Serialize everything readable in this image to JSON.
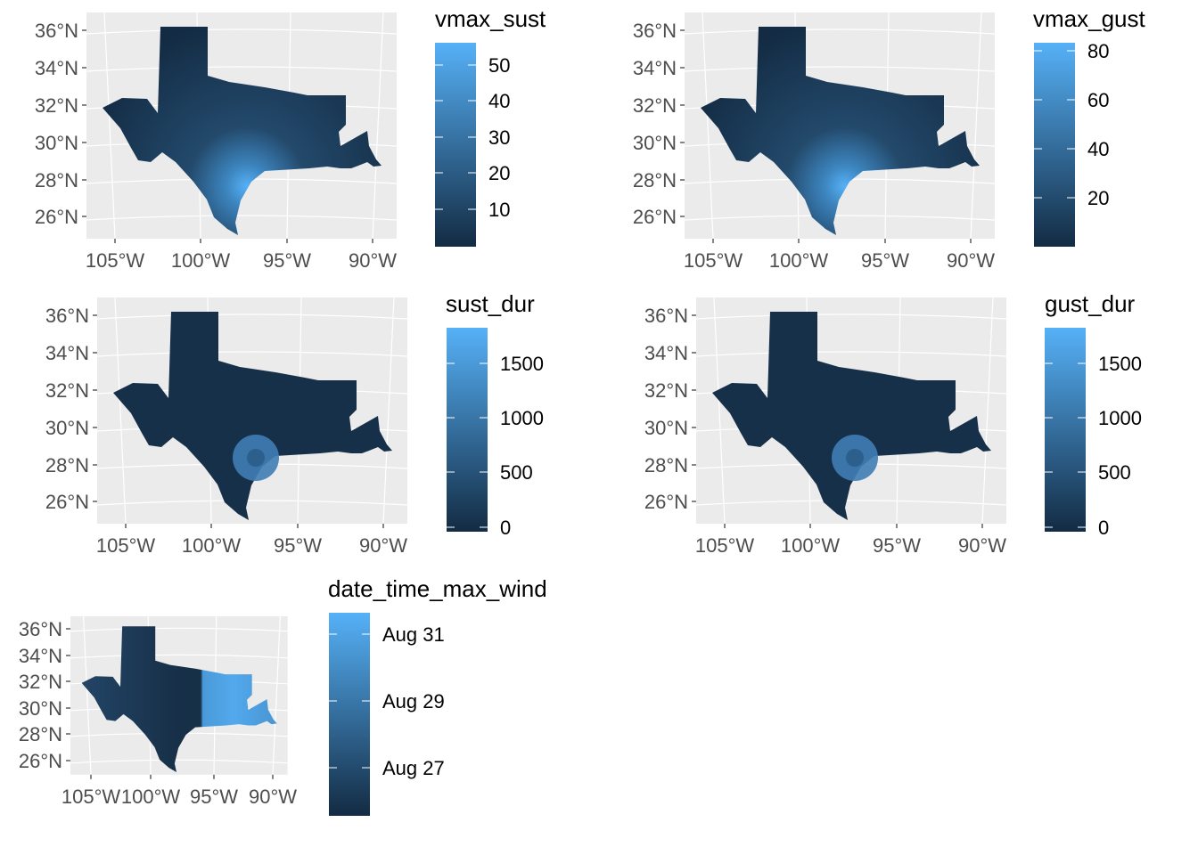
{
  "chart_data": [
    {
      "type": "heatmap",
      "variable": "vmax_sust",
      "legend_title": "vmax_sust",
      "legend_ticks": [
        "50",
        "40",
        "30",
        "20",
        "10"
      ],
      "legend_range": [
        2,
        57
      ],
      "lat_ticks": [
        "36°N",
        "34°N",
        "32°N",
        "30°N",
        "28°N",
        "26°N"
      ],
      "lon_ticks": [
        "105°W",
        "100°W",
        "95°W",
        "90°W"
      ],
      "pattern": "peak near coast"
    },
    {
      "type": "heatmap",
      "variable": "vmax_gust",
      "legend_title": "vmax_gust",
      "legend_ticks": [
        "80",
        "60",
        "40",
        "20"
      ],
      "legend_range": [
        2,
        88
      ],
      "lat_ticks": [
        "36°N",
        "34°N",
        "32°N",
        "30°N",
        "28°N",
        "26°N"
      ],
      "lon_ticks": [
        "105°W",
        "100°W",
        "95°W",
        "90°W"
      ],
      "pattern": "peak near coast"
    },
    {
      "type": "heatmap",
      "variable": "sust_dur",
      "legend_title": "sust_dur",
      "legend_ticks": [
        "1500",
        "1000",
        "500",
        "0"
      ],
      "legend_range": [
        0,
        1900
      ],
      "lat_ticks": [
        "36°N",
        "34°N",
        "32°N",
        "30°N",
        "28°N",
        "26°N"
      ],
      "lon_ticks": [
        "105°W",
        "100°W",
        "95°W",
        "90°W"
      ],
      "pattern": "circle near coast"
    },
    {
      "type": "heatmap",
      "variable": "gust_dur",
      "legend_title": "gust_dur",
      "legend_ticks": [
        "1500",
        "1000",
        "500",
        "0"
      ],
      "legend_range": [
        0,
        1900
      ],
      "lat_ticks": [
        "36°N",
        "34°N",
        "32°N",
        "30°N",
        "28°N",
        "26°N"
      ],
      "lon_ticks": [
        "105°W",
        "100°W",
        "95°W",
        "90°W"
      ],
      "pattern": "circle near coast"
    },
    {
      "type": "heatmap",
      "variable": "date_time_max_wind",
      "legend_title": "date_time_max_wind",
      "legend_ticks": [
        "Aug 31",
        "Aug 29",
        "Aug 27"
      ],
      "legend_range": [
        "Aug 25",
        "Aug 32"
      ],
      "lat_ticks": [
        "36°N",
        "34°N",
        "32°N",
        "30°N",
        "28°N",
        "26°N"
      ],
      "lon_ticks": [
        "105°W",
        "100°W",
        "95°W",
        "90°W"
      ],
      "pattern": "east later"
    }
  ],
  "colors": {
    "low": "#132B43",
    "high": "#56B1F7",
    "panel": "#EBEBEB",
    "grid": "#FFFFFF",
    "axis_text": "#4D4D4D"
  }
}
